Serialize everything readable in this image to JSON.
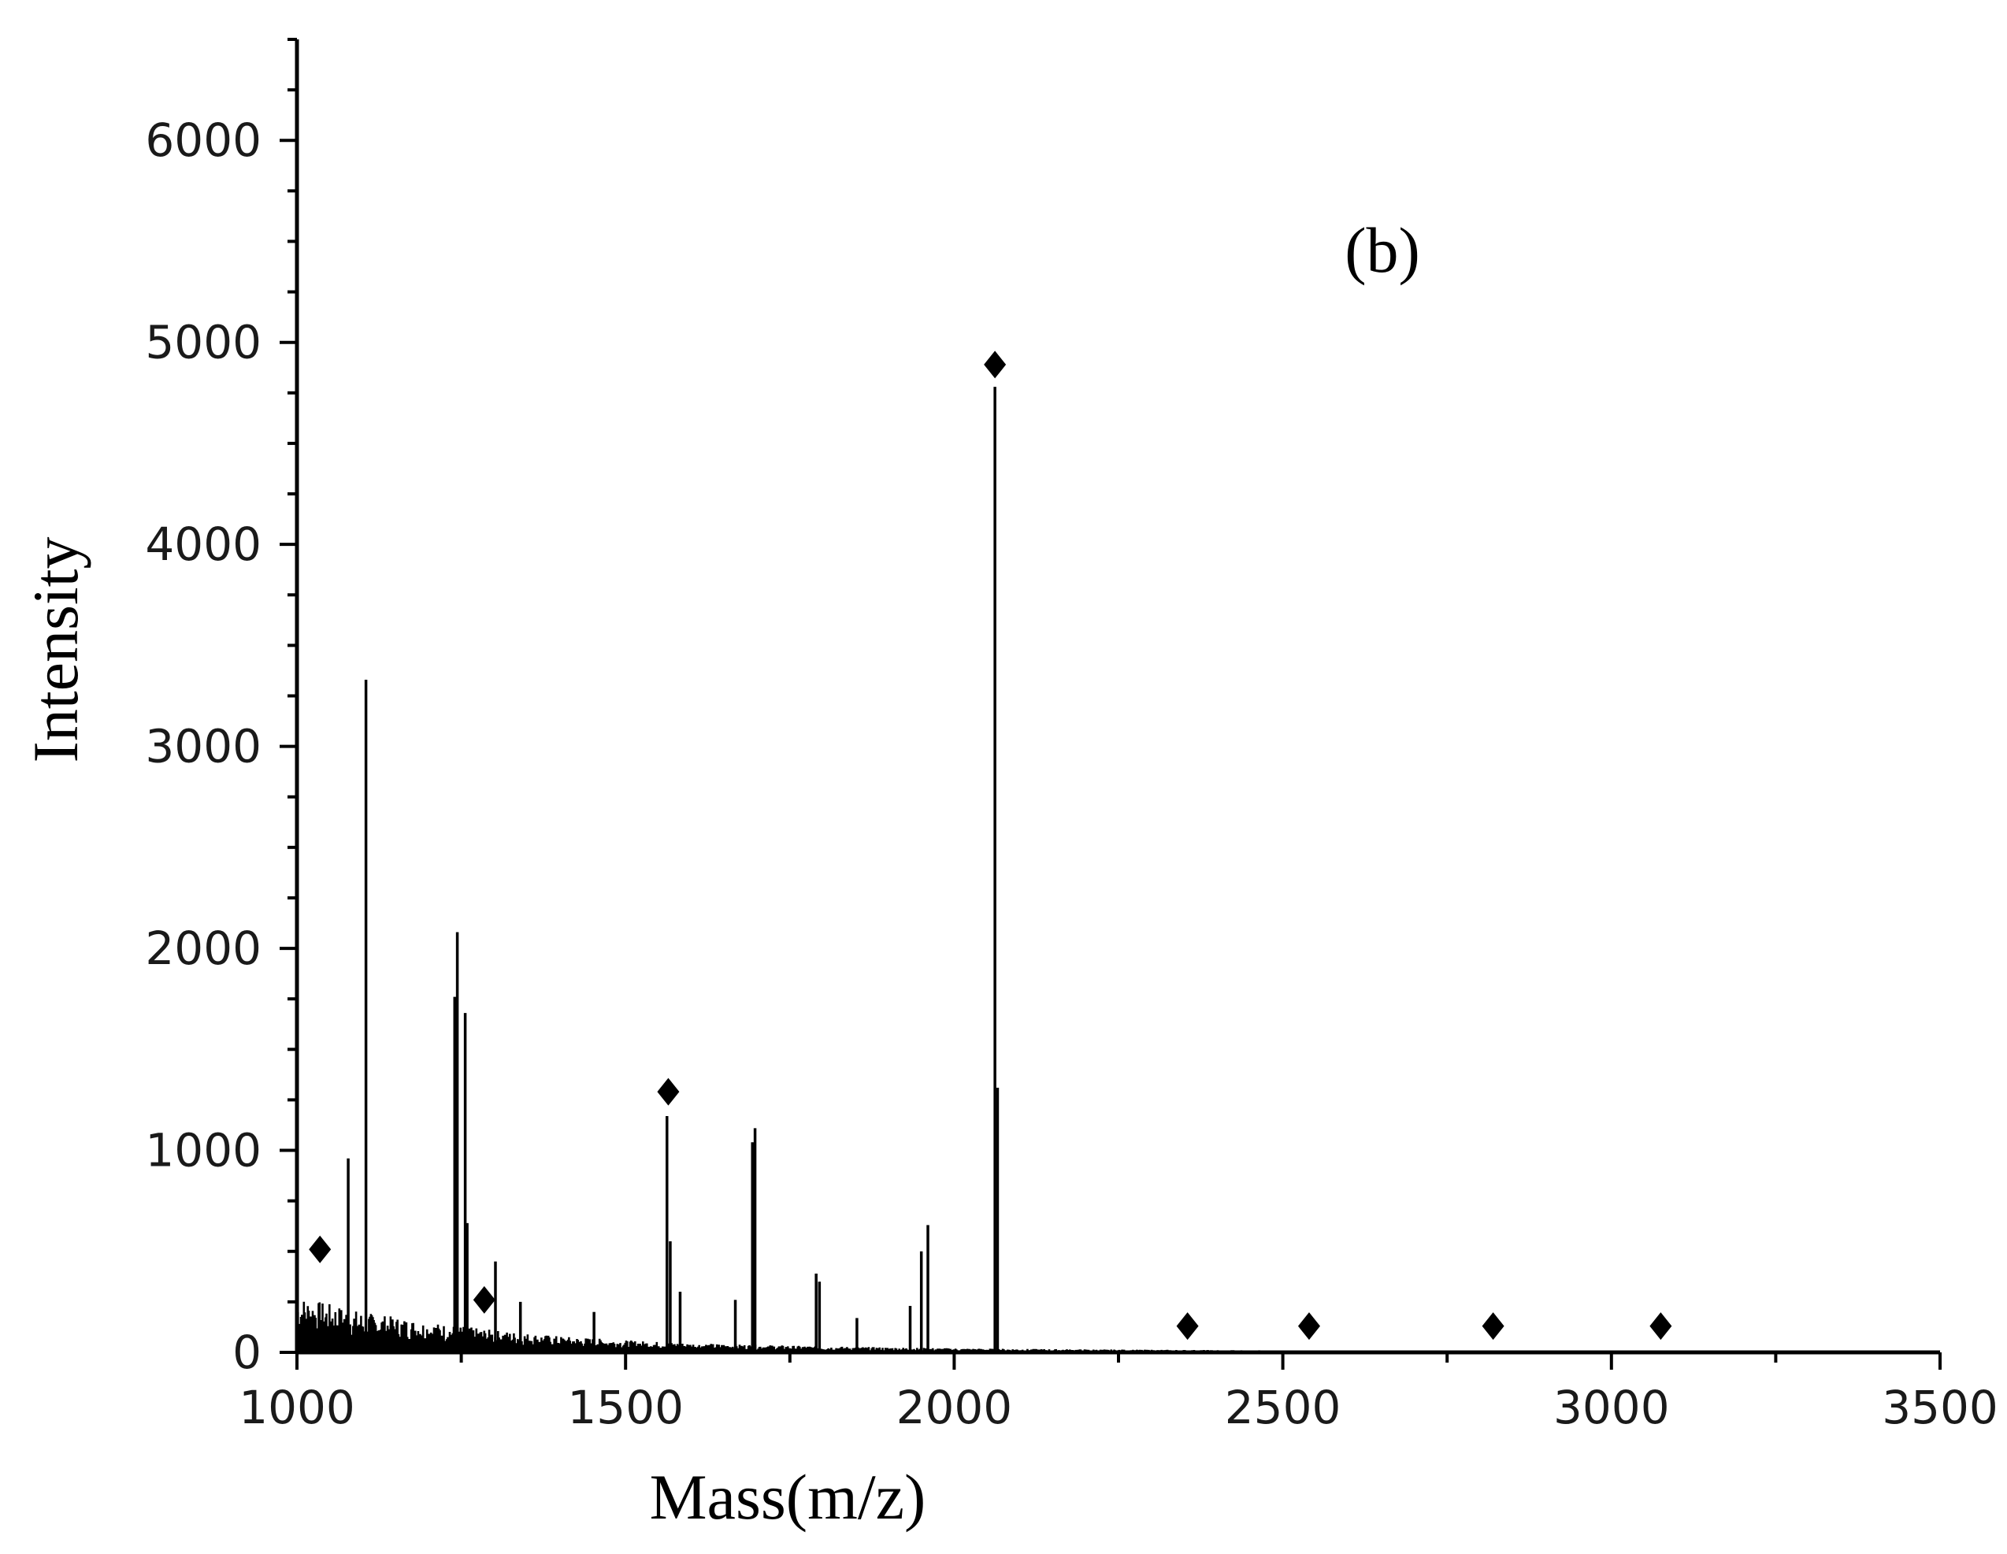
{
  "chart_data": {
    "type": "bar",
    "panel_label": "(b)",
    "xlabel": "Mass(m/z)",
    "ylabel": "Intensity",
    "xlim": [
      1000,
      3500
    ],
    "ylim": [
      0,
      6500
    ],
    "x_ticks": [
      1000,
      1500,
      2000,
      2500,
      3000,
      3500
    ],
    "y_ticks": [
      0,
      1000,
      2000,
      3000,
      4000,
      5000,
      6000
    ],
    "grid": false,
    "legend": "none",
    "series": [
      {
        "values": [
          {
            "x": 1078,
            "y": 960
          },
          {
            "x": 1105,
            "y": 3330
          },
          {
            "x": 1240,
            "y": 1760
          },
          {
            "x": 1244,
            "y": 2080
          },
          {
            "x": 1256,
            "y": 1680
          },
          {
            "x": 1259,
            "y": 640
          },
          {
            "x": 1302,
            "y": 450
          },
          {
            "x": 1340,
            "y": 250
          },
          {
            "x": 1452,
            "y": 200
          },
          {
            "x": 1563,
            "y": 1170
          },
          {
            "x": 1568,
            "y": 550
          },
          {
            "x": 1583,
            "y": 300
          },
          {
            "x": 1667,
            "y": 260
          },
          {
            "x": 1693,
            "y": 1040
          },
          {
            "x": 1697,
            "y": 1110
          },
          {
            "x": 1790,
            "y": 390
          },
          {
            "x": 1795,
            "y": 350
          },
          {
            "x": 1852,
            "y": 170
          },
          {
            "x": 1933,
            "y": 230
          },
          {
            "x": 1950,
            "y": 500
          },
          {
            "x": 1960,
            "y": 630
          },
          {
            "x": 2062,
            "y": 4780
          },
          {
            "x": 2066,
            "y": 1310
          }
        ]
      }
    ],
    "noise_baseline": [
      {
        "x": 1000,
        "y": 280
      },
      {
        "x": 1100,
        "y": 200
      },
      {
        "x": 1200,
        "y": 150
      },
      {
        "x": 1300,
        "y": 110
      },
      {
        "x": 1400,
        "y": 80
      },
      {
        "x": 1500,
        "y": 60
      },
      {
        "x": 1600,
        "y": 45
      },
      {
        "x": 1800,
        "y": 30
      },
      {
        "x": 2000,
        "y": 20
      },
      {
        "x": 2200,
        "y": 15
      },
      {
        "x": 2600,
        "y": 8
      },
      {
        "x": 3500,
        "y": 3
      }
    ],
    "markers": [
      {
        "x": 1035,
        "y": 510
      },
      {
        "x": 1285,
        "y": 260
      },
      {
        "x": 1565,
        "y": 1290
      },
      {
        "x": 2062,
        "y": 4890
      },
      {
        "x": 2355,
        "y": 130
      },
      {
        "x": 2540,
        "y": 130
      },
      {
        "x": 2820,
        "y": 130
      },
      {
        "x": 3075,
        "y": 130
      }
    ],
    "colors": {
      "axis": "#000000",
      "spectrum": "#000000"
    }
  }
}
